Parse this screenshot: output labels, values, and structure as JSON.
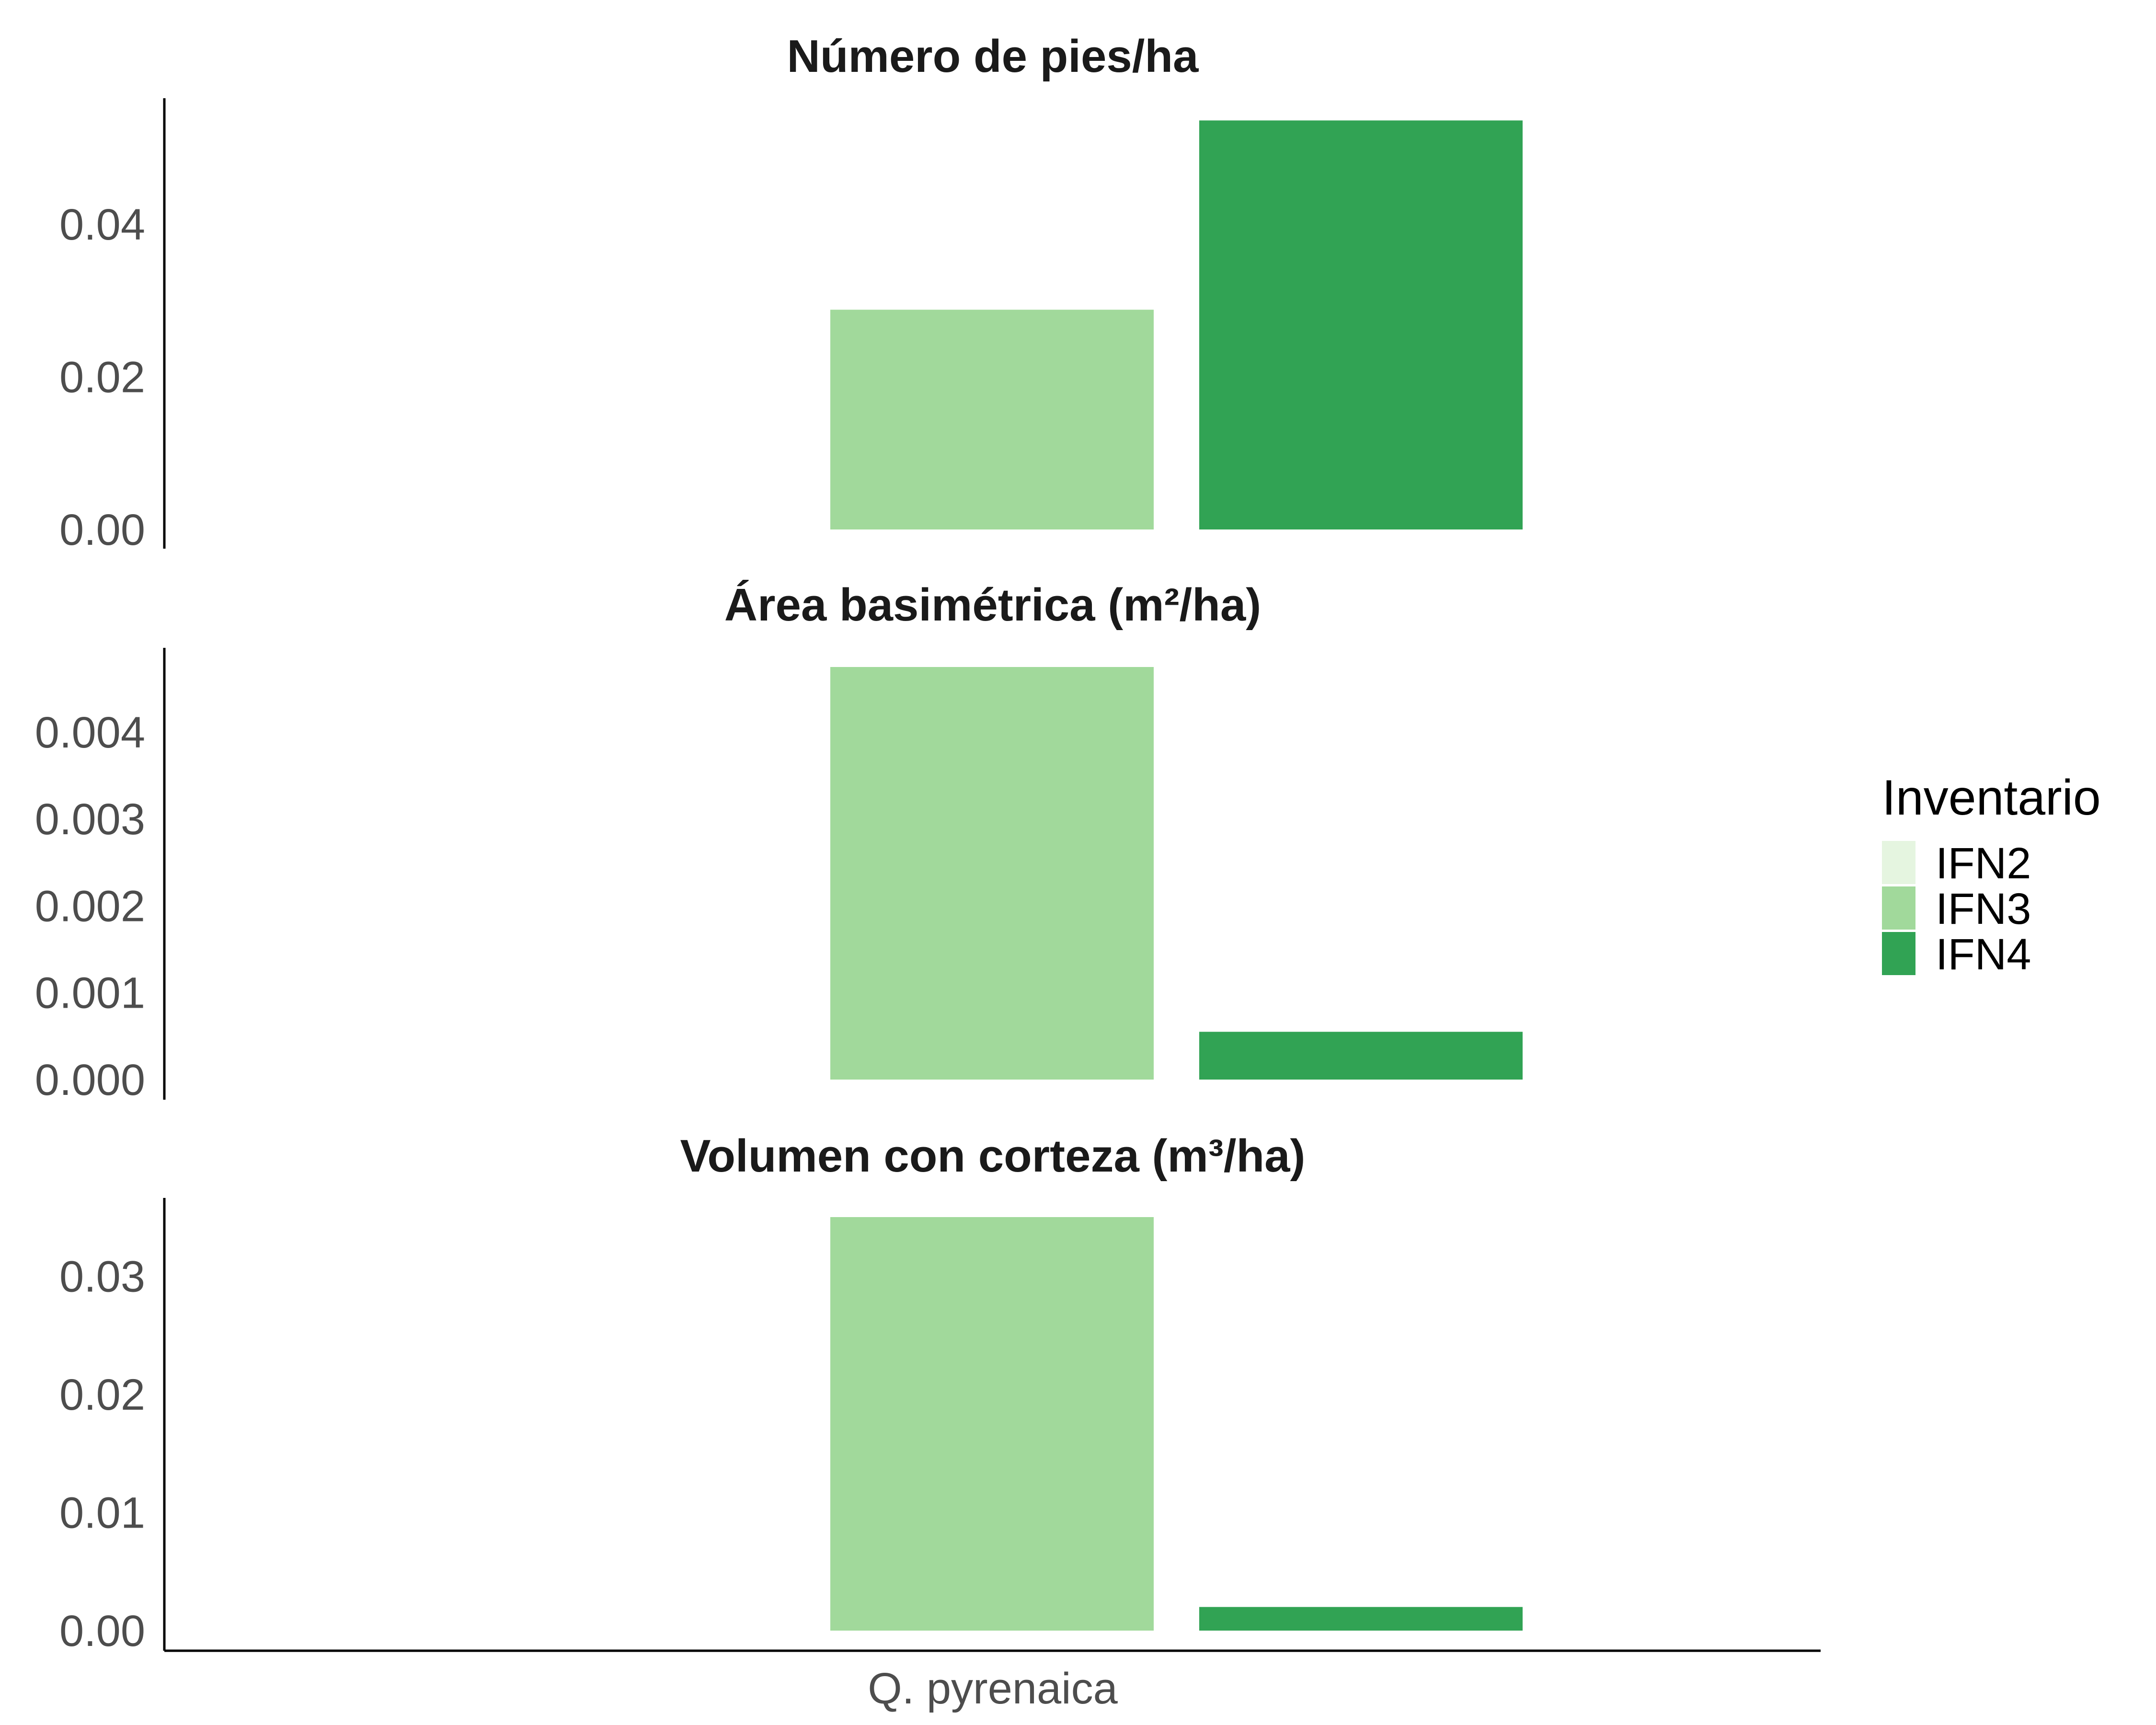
{
  "chart_data": {
    "type": "bar",
    "categories": [
      "Q. pyrenaica"
    ],
    "legend": {
      "title": "Inventario",
      "position": "right",
      "entries": [
        {
          "name": "IFN2",
          "color": "#e5f5e0"
        },
        {
          "name": "IFN3",
          "color": "#a1d99b"
        },
        {
          "name": "IFN4",
          "color": "#31a354"
        }
      ]
    },
    "grid": false,
    "panels": [
      {
        "title": "Número de pies/ha",
        "ylim": [
          0,
          0.054
        ],
        "yticks": [
          0.0,
          0.02,
          0.04
        ],
        "ytick_labels": [
          "0.00",
          "0.02",
          "0.04"
        ],
        "series": [
          {
            "name": "IFN3",
            "values": [
              0.0288
            ]
          },
          {
            "name": "IFN4",
            "values": [
              0.0536
            ]
          }
        ]
      },
      {
        "title": "Área basimétrica (m²/ha)",
        "ylim": [
          0,
          0.00475
        ],
        "yticks": [
          0.0,
          0.001,
          0.002,
          0.003,
          0.004
        ],
        "ytick_labels": [
          "0.000",
          "0.001",
          "0.002",
          "0.003",
          "0.004"
        ],
        "series": [
          {
            "name": "IFN3",
            "values": [
              0.00475
            ]
          },
          {
            "name": "IFN4",
            "values": [
              0.00055
            ]
          }
        ]
      },
      {
        "title": "Volumen con corteza (m³/ha)",
        "ylim": [
          0,
          0.035
        ],
        "yticks": [
          0.0,
          0.01,
          0.02,
          0.03
        ],
        "ytick_labels": [
          "0.00",
          "0.01",
          "0.02",
          "0.03"
        ],
        "series": [
          {
            "name": "IFN3",
            "values": [
              0.035
            ]
          },
          {
            "name": "IFN4",
            "values": [
              0.002
            ]
          }
        ]
      }
    ]
  }
}
